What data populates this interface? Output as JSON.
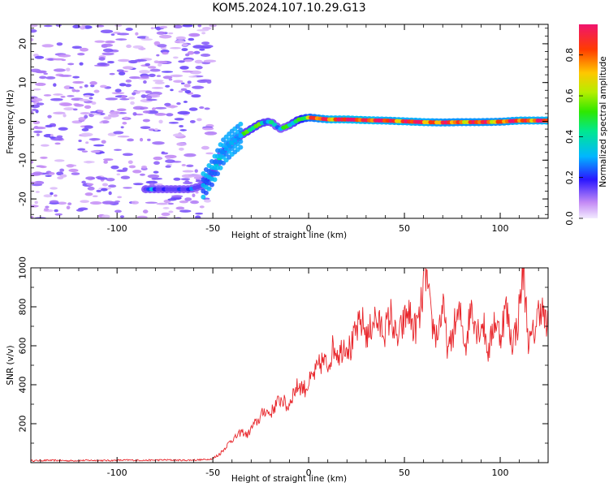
{
  "page": {
    "title": "KOM5.2024.107.10.29.G13"
  },
  "chart_data": [
    {
      "type": "heatmap",
      "title": "KOM5.2024.107.10.29.G13",
      "xlabel": "Height of straight line (km)",
      "ylabel": "Frequency (Hz)",
      "xlim": [
        -145,
        125
      ],
      "ylim": [
        -25,
        25
      ],
      "x_ticks": [
        -100,
        -50,
        0,
        50,
        100
      ],
      "y_ticks": [
        -20,
        -10,
        0,
        10,
        20
      ],
      "colorbar": {
        "label": "Normalized spectral amplitude",
        "range": [
          0,
          0.95
        ],
        "ticks": [
          0.0,
          0.2,
          0.4,
          0.6,
          0.8
        ],
        "colormap": "rainbow"
      },
      "ridge": {
        "description_points_x": [
          -85,
          -75,
          -62,
          -55,
          -50,
          -45,
          -40,
          -35,
          -30,
          -25,
          -20,
          -15,
          -10,
          -5,
          0,
          10,
          20,
          30,
          40,
          50,
          60,
          70,
          80,
          90,
          100,
          110,
          120
        ],
        "frequency_hz": [
          -17.5,
          -17.5,
          -17.5,
          -16.5,
          -13,
          -8,
          -5.5,
          -3.5,
          -2,
          -0.5,
          0,
          -2,
          -1,
          0.5,
          1,
          0.5,
          0.5,
          0.3,
          0.2,
          0.0,
          -0.2,
          -0.3,
          -0.2,
          -0.2,
          -0.1,
          0.2,
          0.2
        ],
        "amplitude": [
          0.15,
          0.1,
          0.1,
          0.15,
          0.2,
          0.25,
          0.35,
          0.4,
          0.45,
          0.45,
          0.4,
          0.3,
          0.4,
          0.5,
          0.7,
          0.85,
          0.9,
          0.9,
          0.85,
          0.85,
          0.85,
          0.8,
          0.8,
          0.8,
          0.8,
          0.85,
          0.85
        ]
      }
    },
    {
      "type": "line",
      "xlabel": "Height of straight line (km)",
      "ylabel": "SNR (v/v)",
      "xlim": [
        -145,
        125
      ],
      "ylim": [
        0,
        1000
      ],
      "x_ticks": [
        -100,
        -50,
        0,
        50,
        100
      ],
      "y_ticks": [
        200,
        400,
        600,
        800,
        1000
      ],
      "color": "#e8262b",
      "series": [
        {
          "x": [
            -145,
            -135,
            -125,
            -115,
            -105,
            -95,
            -85,
            -75,
            -65,
            -55,
            -50,
            -47,
            -44,
            -41,
            -38,
            -35,
            -32,
            -29,
            -26,
            -23,
            -20,
            -17,
            -14,
            -11,
            -8,
            -5,
            -2,
            1,
            4,
            7,
            10,
            13,
            16,
            19,
            22,
            25,
            28,
            31,
            34,
            37,
            40,
            43,
            46,
            49,
            52,
            55,
            58,
            61,
            64,
            67,
            70,
            73,
            76,
            79,
            82,
            85,
            88,
            91,
            94,
            97,
            100,
            103,
            106,
            109,
            112,
            115,
            118,
            121,
            124
          ],
          "y": [
            10,
            12,
            10,
            12,
            11,
            13,
            12,
            14,
            12,
            15,
            20,
            40,
            70,
            110,
            130,
            160,
            140,
            190,
            220,
            270,
            250,
            300,
            330,
            280,
            360,
            400,
            380,
            420,
            470,
            520,
            500,
            600,
            560,
            620,
            580,
            680,
            720,
            640,
            750,
            700,
            680,
            760,
            620,
            700,
            780,
            680,
            740,
            1000,
            720,
            650,
            800,
            560,
            700,
            760,
            600,
            820,
            680,
            720,
            560,
            740,
            650,
            800,
            620,
            700,
            1000,
            600,
            680,
            820,
            700
          ]
        }
      ]
    }
  ]
}
